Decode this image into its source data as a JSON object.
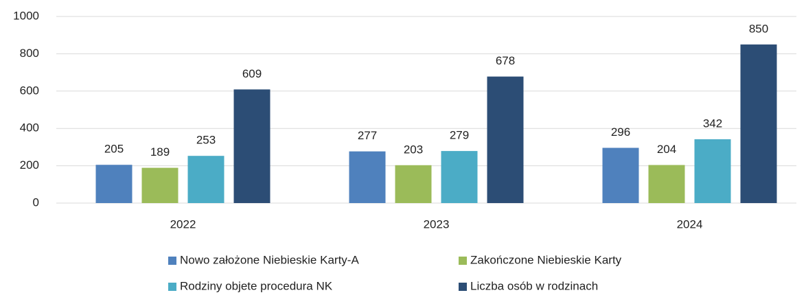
{
  "chart_data": {
    "type": "bar",
    "categories": [
      "2022",
      "2023",
      "2024"
    ],
    "series": [
      {
        "name": "Nowo założone Niebieskie Karty-A",
        "color": "#4f81bd",
        "values": [
          205,
          277,
          296
        ]
      },
      {
        "name": "Zakończone Niebieskie Karty",
        "color": "#9bbb59",
        "values": [
          189,
          203,
          204
        ]
      },
      {
        "name": "Rodziny objete procedura NK",
        "color": "#4bacc6",
        "values": [
          253,
          279,
          342
        ]
      },
      {
        "name": "Liczba osób w rodzinach",
        "color": "#2c4d75",
        "values": [
          609,
          678,
          850
        ]
      }
    ],
    "ylim": [
      0,
      1000
    ],
    "yticks": [
      0,
      200,
      400,
      600,
      800,
      1000
    ],
    "grid": true,
    "legend": "bottom"
  }
}
